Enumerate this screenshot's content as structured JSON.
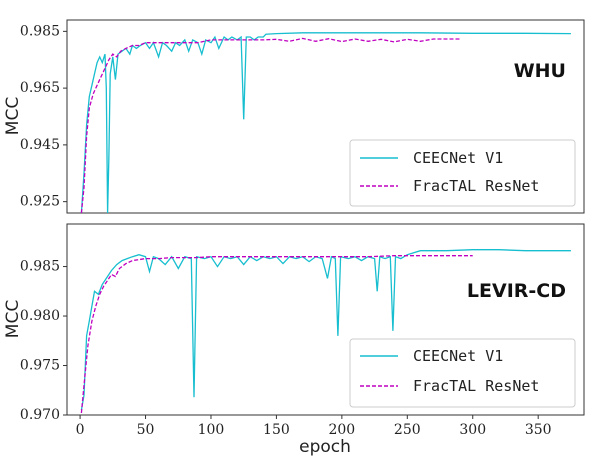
{
  "chart_data": [
    {
      "type": "line",
      "panel_label": "WHU",
      "ylabel": "MCC",
      "xlim": [
        -10,
        385
      ],
      "ylim": [
        0.921,
        0.989
      ],
      "yticks": [
        0.925,
        0.945,
        0.965,
        0.985
      ],
      "ytick_labels": [
        "0.925",
        "0.945",
        "0.965",
        "0.985"
      ],
      "legend_position": "lower-right",
      "series": [
        {
          "name": "CEECNet V1",
          "color": "#17becf",
          "dash": "solid",
          "points": [
            [
              1,
              0.921
            ],
            [
              3,
              0.935
            ],
            [
              5,
              0.952
            ],
            [
              7,
              0.962
            ],
            [
              9,
              0.966
            ],
            [
              11,
              0.97
            ],
            [
              13,
              0.974
            ],
            [
              15,
              0.976
            ],
            [
              17,
              0.974
            ],
            [
              19,
              0.977
            ],
            [
              20,
              0.965
            ],
            [
              21,
              0.921
            ],
            [
              22,
              0.941
            ],
            [
              23,
              0.97
            ],
            [
              25,
              0.976
            ],
            [
              27,
              0.968
            ],
            [
              29,
              0.977
            ],
            [
              32,
              0.978
            ],
            [
              35,
              0.979
            ],
            [
              38,
              0.977
            ],
            [
              40,
              0.98
            ],
            [
              43,
              0.979
            ],
            [
              46,
              0.98
            ],
            [
              50,
              0.981
            ],
            [
              53,
              0.979
            ],
            [
              56,
              0.981
            ],
            [
              60,
              0.976
            ],
            [
              63,
              0.981
            ],
            [
              66,
              0.98
            ],
            [
              70,
              0.978
            ],
            [
              73,
              0.981
            ],
            [
              76,
              0.98
            ],
            [
              80,
              0.982
            ],
            [
              83,
              0.978
            ],
            [
              86,
              0.982
            ],
            [
              90,
              0.981
            ],
            [
              93,
              0.977
            ],
            [
              96,
              0.982
            ],
            [
              100,
              0.981
            ],
            [
              103,
              0.983
            ],
            [
              106,
              0.979
            ],
            [
              110,
              0.983
            ],
            [
              113,
              0.982
            ],
            [
              116,
              0.983
            ],
            [
              120,
              0.982
            ],
            [
              123,
              0.983
            ],
            [
              125,
              0.954
            ],
            [
              127,
              0.983
            ],
            [
              130,
              0.983
            ],
            [
              133,
              0.982
            ],
            [
              136,
              0.983
            ],
            [
              140,
              0.983
            ],
            [
              142,
              0.984
            ],
            [
              150,
              0.9842
            ],
            [
              170,
              0.9845
            ],
            [
              200,
              0.9845
            ],
            [
              230,
              0.9845
            ],
            [
              260,
              0.9845
            ],
            [
              300,
              0.9843
            ],
            [
              340,
              0.9843
            ],
            [
              375,
              0.9842
            ]
          ]
        },
        {
          "name": "FracTAL ResNet",
          "color": "#c000c0",
          "dash": "dashed",
          "points": [
            [
              1,
              0.921
            ],
            [
              3,
              0.93
            ],
            [
              5,
              0.948
            ],
            [
              7,
              0.958
            ],
            [
              10,
              0.963
            ],
            [
              13,
              0.966
            ],
            [
              16,
              0.969
            ],
            [
              19,
              0.972
            ],
            [
              22,
              0.975
            ],
            [
              25,
              0.977
            ],
            [
              28,
              0.976
            ],
            [
              31,
              0.978
            ],
            [
              35,
              0.979
            ],
            [
              40,
              0.98
            ],
            [
              45,
              0.98
            ],
            [
              50,
              0.981
            ],
            [
              60,
              0.981
            ],
            [
              70,
              0.981
            ],
            [
              80,
              0.981
            ],
            [
              90,
              0.981
            ],
            [
              100,
              0.982
            ],
            [
              110,
              0.982
            ],
            [
              120,
              0.982
            ],
            [
              130,
              0.982
            ],
            [
              140,
              0.982
            ],
            [
              150,
              0.9822
            ],
            [
              160,
              0.9815
            ],
            [
              170,
              0.9825
            ],
            [
              180,
              0.9815
            ],
            [
              190,
              0.9824
            ],
            [
              200,
              0.9814
            ],
            [
              210,
              0.9823
            ],
            [
              220,
              0.9815
            ],
            [
              230,
              0.9822
            ],
            [
              240,
              0.9813
            ],
            [
              250,
              0.9822
            ],
            [
              260,
              0.9815
            ],
            [
              270,
              0.9823
            ],
            [
              280,
              0.9823
            ],
            [
              290,
              0.9823
            ]
          ]
        }
      ]
    },
    {
      "type": "line",
      "panel_label": "LEVIR-CD",
      "ylabel": "MCC",
      "xlabel": "epoch",
      "xlim": [
        -10,
        385
      ],
      "ylim": [
        0.97,
        0.9893
      ],
      "xticks": [
        0,
        50,
        100,
        150,
        200,
        250,
        300,
        350
      ],
      "xtick_labels": [
        "0",
        "50",
        "100",
        "150",
        "200",
        "250",
        "300",
        "350"
      ],
      "yticks": [
        0.97,
        0.975,
        0.98,
        0.985
      ],
      "ytick_labels": [
        "0.970",
        "0.975",
        "0.980",
        "0.985"
      ],
      "legend_position": "lower-right",
      "series": [
        {
          "name": "CEECNet V1",
          "color": "#17becf",
          "dash": "solid",
          "points": [
            [
              1,
              0.9705
            ],
            [
              3,
              0.972
            ],
            [
              5,
              0.978
            ],
            [
              7,
              0.9795
            ],
            [
              9,
              0.981
            ],
            [
              11,
              0.9825
            ],
            [
              14,
              0.9822
            ],
            [
              17,
              0.9832
            ],
            [
              20,
              0.9838
            ],
            [
              24,
              0.9846
            ],
            [
              28,
              0.9852
            ],
            [
              32,
              0.9856
            ],
            [
              36,
              0.9858
            ],
            [
              40,
              0.986
            ],
            [
              45,
              0.9862
            ],
            [
              50,
              0.986
            ],
            [
              53,
              0.9845
            ],
            [
              56,
              0.986
            ],
            [
              60,
              0.9858
            ],
            [
              65,
              0.9852
            ],
            [
              70,
              0.986
            ],
            [
              75,
              0.9848
            ],
            [
              80,
              0.986
            ],
            [
              85,
              0.9858
            ],
            [
              87,
              0.9718
            ],
            [
              89,
              0.986
            ],
            [
              95,
              0.9858
            ],
            [
              100,
              0.986
            ],
            [
              105,
              0.985
            ],
            [
              110,
              0.986
            ],
            [
              115,
              0.9858
            ],
            [
              120,
              0.986
            ],
            [
              125,
              0.9852
            ],
            [
              130,
              0.986
            ],
            [
              135,
              0.9856
            ],
            [
              140,
              0.986
            ],
            [
              145,
              0.9858
            ],
            [
              150,
              0.986
            ],
            [
              155,
              0.9853
            ],
            [
              160,
              0.986
            ],
            [
              165,
              0.9858
            ],
            [
              170,
              0.986
            ],
            [
              175,
              0.9855
            ],
            [
              180,
              0.986
            ],
            [
              185,
              0.9858
            ],
            [
              189,
              0.9838
            ],
            [
              192,
              0.986
            ],
            [
              195,
              0.9858
            ],
            [
              197,
              0.978
            ],
            [
              199,
              0.986
            ],
            [
              205,
              0.9858
            ],
            [
              210,
              0.986
            ],
            [
              215,
              0.9856
            ],
            [
              220,
              0.986
            ],
            [
              225,
              0.9858
            ],
            [
              227,
              0.9825
            ],
            [
              229,
              0.986
            ],
            [
              233,
              0.9858
            ],
            [
              237,
              0.986
            ],
            [
              239,
              0.9785
            ],
            [
              241,
              0.986
            ],
            [
              245,
              0.9858
            ],
            [
              250,
              0.9862
            ],
            [
              260,
              0.9866
            ],
            [
              280,
              0.9866
            ],
            [
              300,
              0.9867
            ],
            [
              320,
              0.9867
            ],
            [
              340,
              0.9866
            ],
            [
              360,
              0.9866
            ],
            [
              375,
              0.9866
            ]
          ]
        },
        {
          "name": "FracTAL ResNet",
          "color": "#c000c0",
          "dash": "dashed",
          "points": [
            [
              1,
              0.9702
            ],
            [
              3,
              0.973
            ],
            [
              6,
              0.977
            ],
            [
              9,
              0.9795
            ],
            [
              12,
              0.981
            ],
            [
              15,
              0.9822
            ],
            [
              18,
              0.983
            ],
            [
              21,
              0.9836
            ],
            [
              24,
              0.9842
            ],
            [
              27,
              0.984
            ],
            [
              30,
              0.9848
            ],
            [
              35,
              0.9853
            ],
            [
              40,
              0.9856
            ],
            [
              50,
              0.9858
            ],
            [
              60,
              0.9858
            ],
            [
              70,
              0.9859
            ],
            [
              80,
              0.9859
            ],
            [
              90,
              0.9859
            ],
            [
              100,
              0.986
            ],
            [
              120,
              0.986
            ],
            [
              140,
              0.986
            ],
            [
              160,
              0.986
            ],
            [
              180,
              0.986
            ],
            [
              200,
              0.986
            ],
            [
              220,
              0.986
            ],
            [
              240,
              0.9861
            ],
            [
              260,
              0.9861
            ],
            [
              280,
              0.9861
            ],
            [
              300,
              0.9861
            ]
          ]
        }
      ]
    }
  ]
}
